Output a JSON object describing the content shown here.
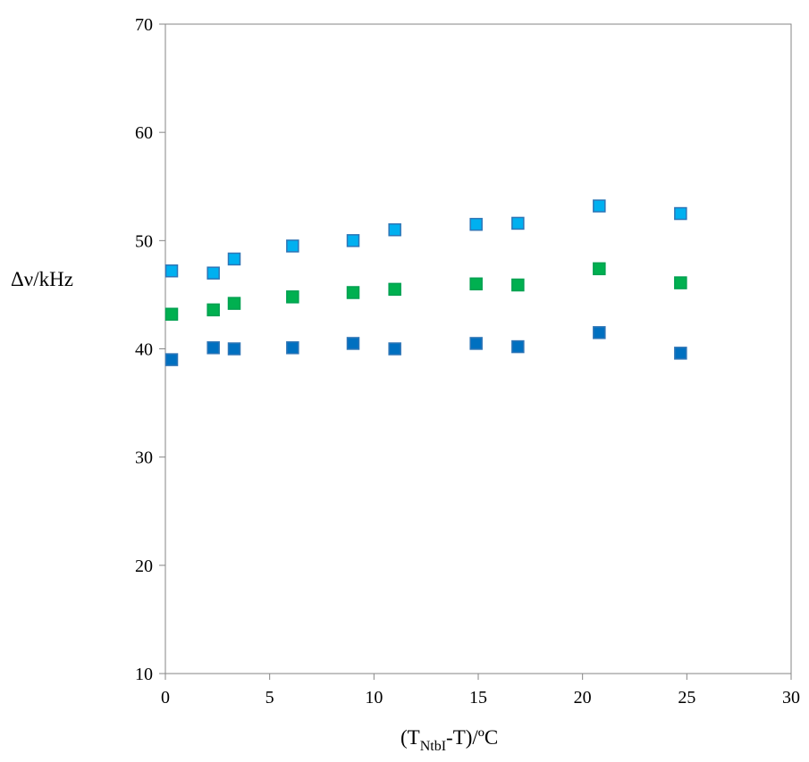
{
  "chart_data": {
    "type": "scatter",
    "title": "",
    "ylabel": "Δν/kHz",
    "xlabel": {
      "prefix": "(T",
      "subscript": "NtbI",
      "suffix": "-T)/ºC"
    },
    "xlim": [
      0,
      30
    ],
    "ylim": [
      10,
      70
    ],
    "xticks": [
      "0",
      "5",
      "10",
      "15",
      "20",
      "25",
      "30"
    ],
    "yticks": [
      "10",
      "20",
      "30",
      "40",
      "50",
      "60",
      "70"
    ],
    "grid": false,
    "legend": "none",
    "marker": "square",
    "series": [
      {
        "color": "#00b0f0",
        "edge": "#2e75b6",
        "x": [
          0.3,
          2.3,
          3.3,
          6.1,
          9.0,
          11.0,
          14.9,
          16.9,
          20.8,
          24.7
        ],
        "y": [
          47.2,
          47.0,
          48.3,
          49.5,
          50.0,
          51.0,
          51.5,
          51.6,
          53.2,
          52.5
        ]
      },
      {
        "color": "#00b050",
        "edge": "#00a050",
        "x": [
          0.3,
          2.3,
          3.3,
          6.1,
          9.0,
          11.0,
          14.9,
          16.9,
          20.8,
          24.7
        ],
        "y": [
          43.2,
          43.6,
          44.2,
          44.8,
          45.2,
          45.5,
          46.0,
          45.9,
          47.4,
          46.1
        ]
      },
      {
        "color": "#0070c0",
        "edge": "#2e75b6",
        "x": [
          0.3,
          2.3,
          3.3,
          6.1,
          9.0,
          11.0,
          14.9,
          16.9,
          20.8,
          24.7
        ],
        "y": [
          39.0,
          40.1,
          40.0,
          40.1,
          40.5,
          40.0,
          40.5,
          40.2,
          41.5,
          39.6
        ]
      }
    ]
  }
}
